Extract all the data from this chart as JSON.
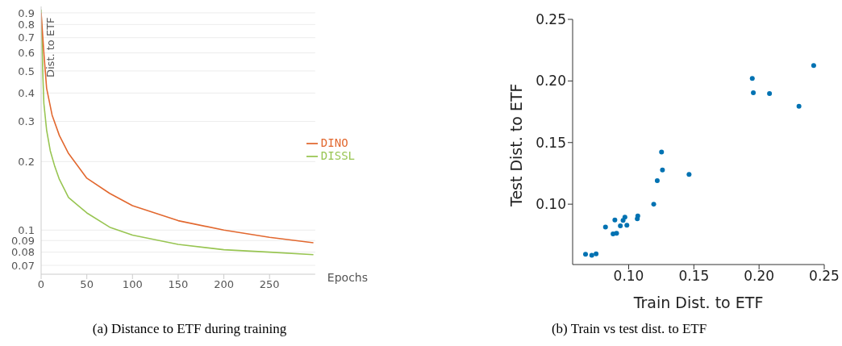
{
  "chart_data": [
    {
      "type": "line",
      "title": "(a) Distance to ETF during training",
      "xlabel": "Epochs",
      "ylabel": "Dist. to ETF",
      "log": "y",
      "grid": "y",
      "legend": "right",
      "marker": "none",
      "line_style": "solid",
      "xlim": [
        0,
        300
      ],
      "xticks": [
        0,
        50,
        100,
        150,
        200,
        250
      ],
      "ylim": [
        0.064,
        0.96
      ],
      "yticks": [
        0.07,
        0.08,
        0.09,
        0.1,
        0.2,
        0.3,
        0.4,
        0.5,
        0.6,
        0.7,
        0.8,
        0.9
      ],
      "series": [
        {
          "name": "DISSL",
          "color": "#98c552",
          "x": [
            0,
            2,
            3,
            6,
            10,
            15,
            20,
            30,
            50,
            75,
            100,
            150,
            200,
            250,
            298
          ],
          "values": [
            0.93,
            0.465,
            0.36,
            0.275,
            0.223,
            0.19,
            0.167,
            0.139,
            0.119,
            0.103,
            0.095,
            0.0865,
            0.082,
            0.08,
            0.078
          ]
        },
        {
          "name": "DINO",
          "color": "#e2682f",
          "x": [
            0,
            3,
            6,
            12,
            20,
            30,
            50,
            75,
            100,
            150,
            200,
            250,
            298
          ],
          "values": [
            0.9,
            0.6,
            0.42,
            0.32,
            0.26,
            0.217,
            0.169,
            0.145,
            0.128,
            0.11,
            0.1,
            0.093,
            0.088
          ]
        }
      ]
    },
    {
      "type": "scatter",
      "title": "(b) Train vs test dist. to ETF",
      "xlabel": "Train Dist. to ETF",
      "ylabel": "Test Dist. to ETF",
      "grid": false,
      "marker": "circle",
      "xlim": [
        0.057,
        0.25
      ],
      "xticks": [
        {
          "value": 0.1,
          "label": "0.10"
        },
        {
          "value": 0.15,
          "label": "0.15"
        },
        {
          "value": 0.2,
          "label": "0.20"
        },
        {
          "value": 0.25,
          "label": "0.25"
        }
      ],
      "ylim": [
        0.051,
        0.25
      ],
      "yticks": [
        {
          "value": 0.1,
          "label": "0.10"
        },
        {
          "value": 0.15,
          "label": "0.15"
        },
        {
          "value": 0.2,
          "label": "0.20"
        },
        {
          "value": 0.25,
          "label": "0.25"
        }
      ],
      "series": [
        {
          "color": "#0072b2",
          "x": [
            0.0669,
            0.0717,
            0.075,
            0.0822,
            0.088,
            0.0907,
            0.0894,
            0.0936,
            0.0957,
            0.0971,
            0.0986,
            0.1066,
            0.107,
            0.1192,
            0.1219,
            0.1252,
            0.1259,
            0.1463,
            0.1948,
            0.1956,
            0.208,
            0.2306,
            0.2419
          ],
          "values": [
            0.0593,
            0.0586,
            0.0597,
            0.0814,
            0.0759,
            0.0764,
            0.0871,
            0.0825,
            0.0869,
            0.0895,
            0.0829,
            0.0882,
            0.0904,
            0.1,
            0.119,
            0.1423,
            0.1278,
            0.1241,
            0.202,
            0.1904,
            0.1898,
            0.1795,
            0.2126
          ]
        }
      ]
    }
  ]
}
